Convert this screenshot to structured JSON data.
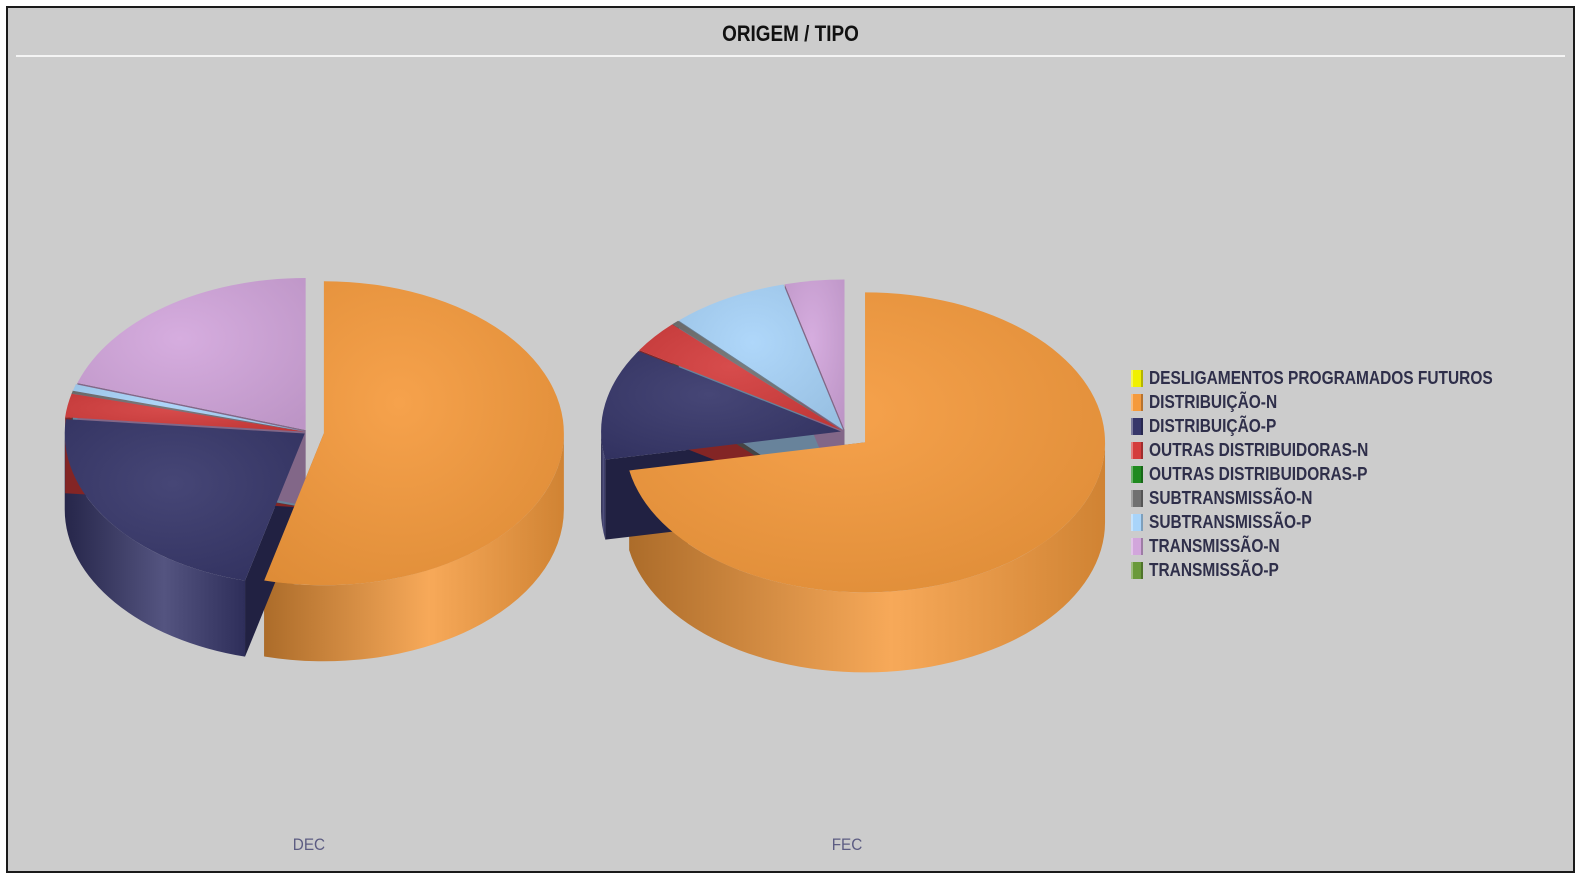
{
  "title": "ORIGEM / TIPO",
  "colors": {
    "DESLIGAMENTOS PROGRAMADOS FUTUROS": "#f0f000",
    "DISTRIBUIÇÃO-N": "#f59a3c",
    "DISTRIBUIÇÃO-P": "#36366a",
    "OUTRAS DISTRIBUIDORAS-N": "#d43c3c",
    "OUTRAS DISTRIBUIDORAS-P": "#1f8a1f",
    "SUBTRANSMISSÃO-N": "#707070",
    "SUBTRANSMISSÃO-P": "#a8d4fa",
    "TRANSMISSÃO-N": "#d2a6dc",
    "TRANSMISSÃO-P": "#6a9a3a"
  },
  "legend": [
    "DESLIGAMENTOS PROGRAMADOS FUTUROS",
    "DISTRIBUIÇÃO-N",
    "DISTRIBUIÇÃO-P",
    "OUTRAS DISTRIBUIDORAS-N",
    "OUTRAS DISTRIBUIDORAS-P",
    "SUBTRANSMISSÃO-N",
    "SUBTRANSMISSÃO-P",
    "TRANSMISSÃO-N",
    "TRANSMISSÃO-P"
  ],
  "chart_data": [
    {
      "type": "pie",
      "label": "DEC",
      "title": "ORIGEM / TIPO",
      "legend_position": "right",
      "slices": [
        {
          "name": "DISTRIBUIÇÃO-N",
          "value": 54.0
        },
        {
          "name": "DISTRIBUIÇÃO-P",
          "value": 22.5
        },
        {
          "name": "OUTRAS DISTRIBUIDORAS-N",
          "value": 2.5
        },
        {
          "name": "SUBTRANSMISSÃO-N",
          "value": 0.3
        },
        {
          "name": "SUBTRANSMISSÃO-P",
          "value": 0.7
        },
        {
          "name": "TRANSMISSÃO-N",
          "value": 20.0
        }
      ]
    },
    {
      "type": "pie",
      "label": "FEC",
      "title": "ORIGEM / TIPO",
      "legend_position": "right",
      "slices": [
        {
          "name": "DISTRIBUIÇÃO-N",
          "value": 72.0
        },
        {
          "name": "DISTRIBUIÇÃO-P",
          "value": 12.0
        },
        {
          "name": "OUTRAS DISTRIBUIDORAS-N",
          "value": 3.5
        },
        {
          "name": "SUBTRANSMISSÃO-N",
          "value": 0.5
        },
        {
          "name": "SUBTRANSMISSÃO-P",
          "value": 8.0
        },
        {
          "name": "TRANSMISSÃO-N",
          "value": 4.0
        }
      ]
    }
  ]
}
